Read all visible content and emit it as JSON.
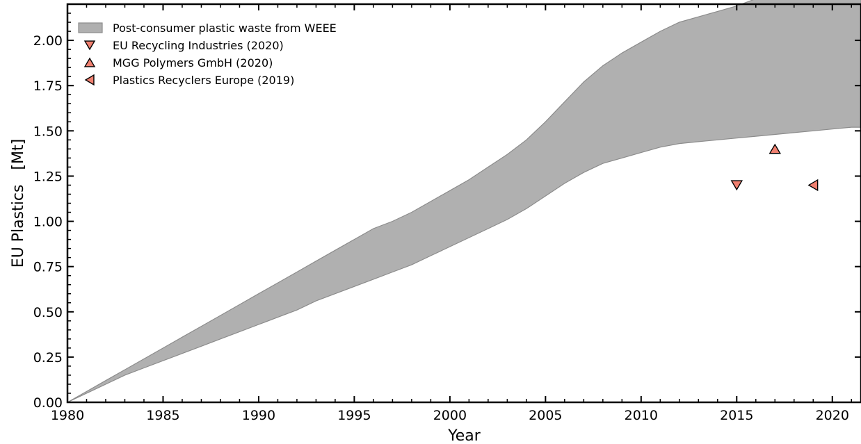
{
  "chart_data": {
    "type": "area",
    "xlabel": "Year",
    "ylabel": "EU Plastics   [Mt]",
    "xlim": [
      1980,
      2021.5
    ],
    "ylim": [
      0,
      2.2
    ],
    "xticks": [
      "1980",
      "1985",
      "1990",
      "1995",
      "2000",
      "2005",
      "2010",
      "2015",
      "2020"
    ],
    "xtick_values": [
      1980,
      1985,
      1990,
      1995,
      2000,
      2005,
      2010,
      2015,
      2020
    ],
    "yticks": [
      "0.00",
      "0.25",
      "0.50",
      "0.75",
      "1.00",
      "1.25",
      "1.50",
      "1.75",
      "2.00"
    ],
    "ytick_values": [
      0,
      0.25,
      0.5,
      0.75,
      1.0,
      1.25,
      1.5,
      1.75,
      2.0
    ],
    "grid": false,
    "legend_position": "top-left",
    "band": {
      "name": "Post-consumer plastic waste from WEEE",
      "color": "#b0b0b0",
      "edge_color": "#8c8c8c",
      "x": [
        1980,
        1981,
        1982,
        1983,
        1984,
        1985,
        1986,
        1987,
        1988,
        1989,
        1990,
        1991,
        1992,
        1993,
        1994,
        1995,
        1996,
        1997,
        1998,
        1999,
        2000,
        2001,
        2002,
        2003,
        2004,
        2005,
        2006,
        2007,
        2008,
        2009,
        2010,
        2011,
        2012,
        2013,
        2014,
        2015,
        2016,
        2017,
        2018,
        2019,
        2020,
        2021,
        2021.5
      ],
      "upper": [
        0.0,
        0.06,
        0.12,
        0.18,
        0.24,
        0.3,
        0.36,
        0.42,
        0.48,
        0.54,
        0.6,
        0.66,
        0.72,
        0.78,
        0.84,
        0.9,
        0.96,
        1.0,
        1.05,
        1.11,
        1.17,
        1.23,
        1.3,
        1.37,
        1.45,
        1.55,
        1.66,
        1.77,
        1.86,
        1.93,
        1.99,
        2.05,
        2.1,
        2.13,
        2.16,
        2.19,
        2.23,
        2.26,
        2.3,
        2.34,
        2.39,
        2.42,
        2.44
      ],
      "lower": [
        0.0,
        0.05,
        0.1,
        0.15,
        0.19,
        0.23,
        0.27,
        0.31,
        0.35,
        0.39,
        0.43,
        0.47,
        0.51,
        0.56,
        0.6,
        0.64,
        0.68,
        0.72,
        0.76,
        0.81,
        0.86,
        0.91,
        0.96,
        1.01,
        1.07,
        1.14,
        1.21,
        1.27,
        1.32,
        1.35,
        1.38,
        1.41,
        1.43,
        1.44,
        1.45,
        1.46,
        1.47,
        1.48,
        1.49,
        1.5,
        1.51,
        1.52,
        1.52
      ]
    },
    "series": [
      {
        "name": "EU Recycling Industries (2020)",
        "marker": "triangle-down",
        "color": "#f08070",
        "x": [
          2015
        ],
        "y": [
          1.2
        ]
      },
      {
        "name": "MGG Polymers GmbH (2020)",
        "marker": "triangle-up",
        "color": "#f08070",
        "x": [
          2017
        ],
        "y": [
          1.4
        ]
      },
      {
        "name": "Plastics Recyclers Europe (2019)",
        "marker": "triangle-left",
        "color": "#f08070",
        "x": [
          2019
        ],
        "y": [
          1.2
        ]
      }
    ]
  }
}
